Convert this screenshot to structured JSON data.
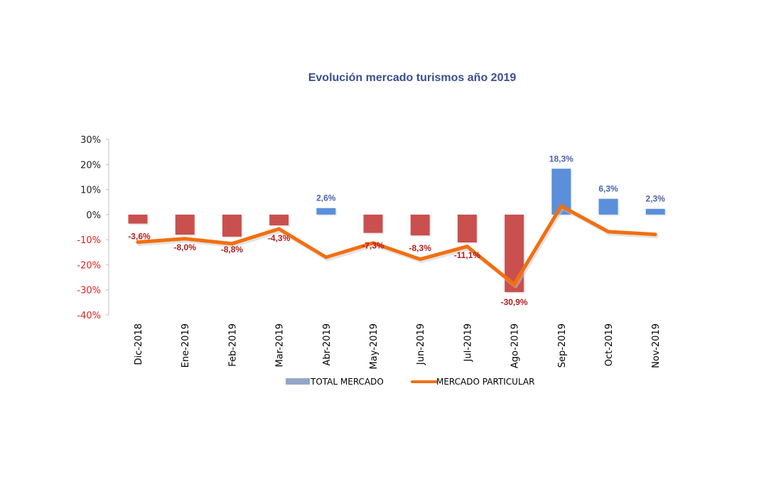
{
  "chart_data": {
    "type": "bar",
    "title": "Evolución mercado turismos año 2019",
    "xlabel": "",
    "ylabel": "",
    "ylim": [
      -40,
      30
    ],
    "yticks": [
      30,
      20,
      10,
      0,
      -10,
      -20,
      -30,
      -40
    ],
    "ytick_labels": [
      "30%",
      "20%",
      "10%",
      "0%",
      "-10%",
      "-20%",
      "-30%",
      "-40%"
    ],
    "categories": [
      "Dic-2018",
      "Ene-2019",
      "Feb-2019",
      "Mar-2019",
      "Abr-2019",
      "May-2019",
      "Jun-2019",
      "Jul-2019",
      "Ago-2019",
      "Sep-2019",
      "Oct-2019",
      "Nov-2019"
    ],
    "series": [
      {
        "name": "TOTAL MERCADO",
        "type": "bar",
        "values": [
          -3.6,
          -8.0,
          -8.8,
          -4.3,
          2.6,
          -7.3,
          -8.3,
          -11.1,
          -30.9,
          18.3,
          6.3,
          2.3
        ],
        "labels": [
          "-3,6%",
          "-8,0%",
          "-8,8%",
          "-4,3%",
          "2,6%",
          "-7,3%",
          "-8,3%",
          "-11,1%",
          "-30,9%",
          "18,3%",
          "6,3%",
          "2,3%"
        ]
      },
      {
        "name": "MERCADO PARTICULAR",
        "type": "line",
        "values": [
          -11.0,
          -9.6,
          -11.6,
          -5.7,
          -17.0,
          -11.3,
          -17.8,
          -12.7,
          -27.8,
          3.4,
          -6.8,
          -7.9
        ]
      }
    ],
    "legend_position": "bottom",
    "grid": false,
    "colors": {
      "positive_bar": "#5b8fd9",
      "negative_bar": "#c9504f",
      "line": "#f26f10",
      "positive_label": "#4a63a8",
      "negative_label": "#b01e1e",
      "positive_tick": "#222222",
      "negative_tick": "#e02020",
      "legend_bar": "#94a6c8",
      "title": "#3a4f91"
    }
  }
}
